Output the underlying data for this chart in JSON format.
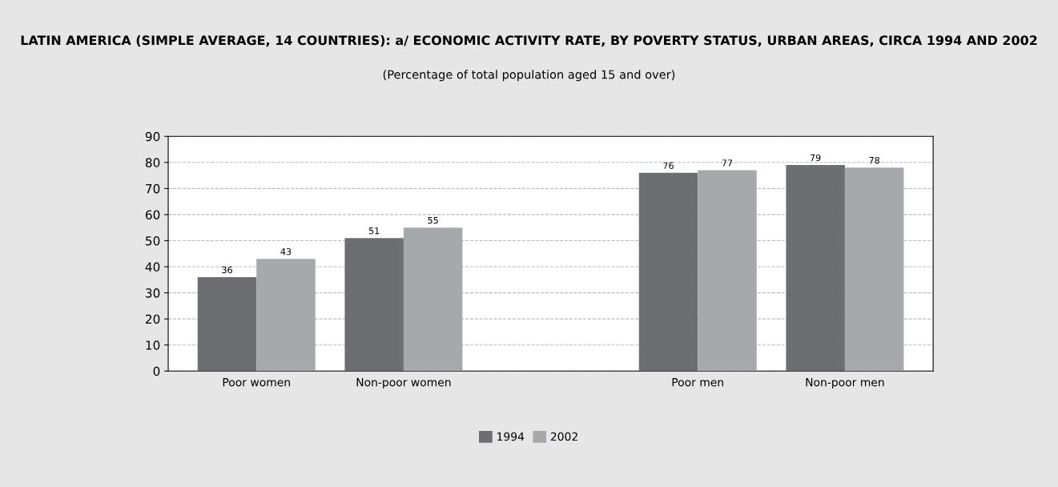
{
  "chart_data": {
    "type": "bar",
    "title": "LATIN AMERICA (SIMPLE AVERAGE, 14 COUNTRIES): a/ ECONOMIC ACTIVITY RATE, BY POVERTY STATUS, URBAN AREAS, CIRCA 1994 AND 2002",
    "subtitle": "(Percentage of total population aged 15 and over)",
    "categories": [
      "Poor women",
      "Non-poor women",
      null,
      "Poor men",
      "Non-poor men"
    ],
    "series": [
      {
        "name": "1994",
        "color": "#6d6e72",
        "values": [
          36,
          51,
          null,
          76,
          79
        ]
      },
      {
        "name": "2002",
        "color": "#a7a8ac",
        "values": [
          43,
          55,
          null,
          77,
          78
        ]
      }
    ],
    "ylim": [
      0,
      90
    ],
    "yticks": [
      0,
      10,
      20,
      30,
      40,
      50,
      60,
      70,
      80,
      90
    ],
    "grid": "y",
    "legend": "bottom",
    "data_labels": true
  }
}
